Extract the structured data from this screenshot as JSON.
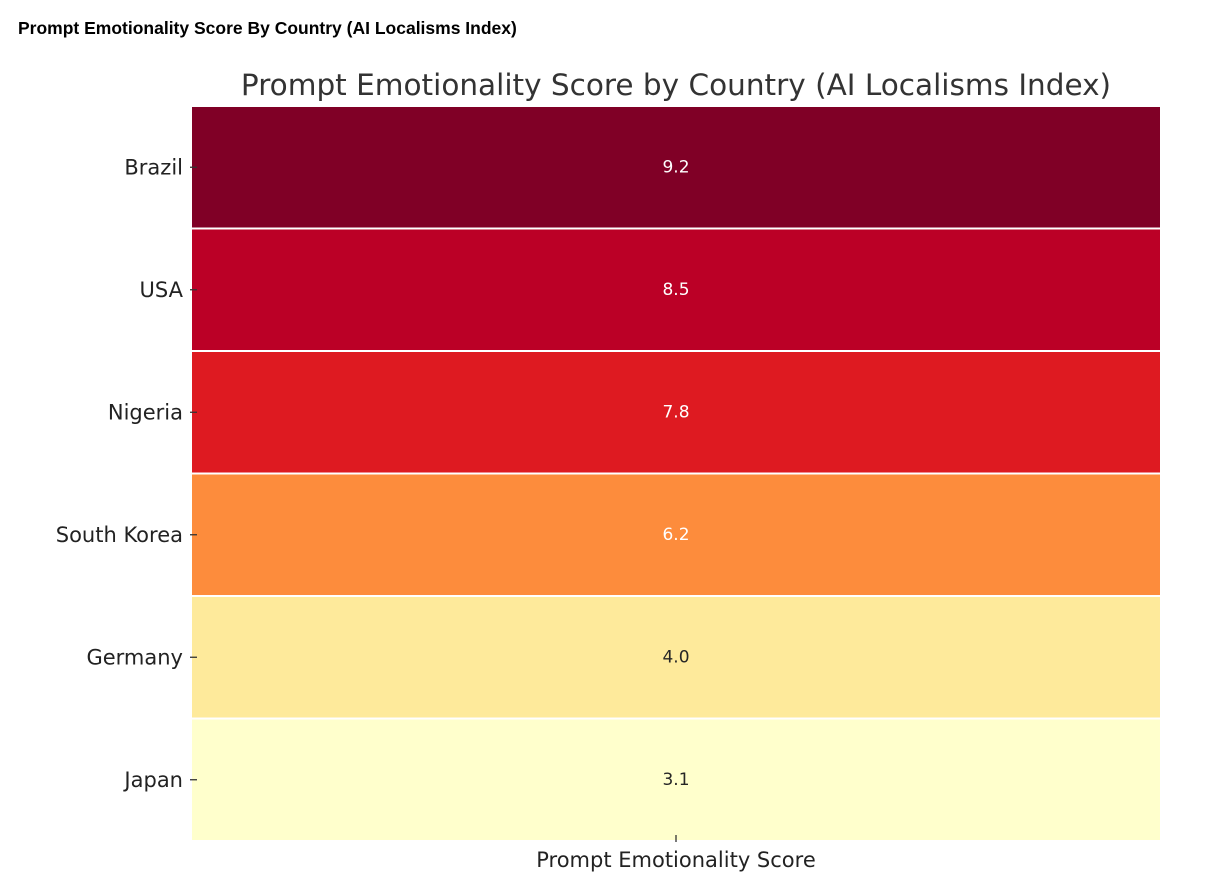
{
  "page": {
    "heading": "Prompt Emotionality Score By Country (AI Localisms Index)"
  },
  "chart_data": {
    "type": "heatmap",
    "title": "Prompt Emotionality Score by Country (AI Localisms Index)",
    "xlabel": "Prompt Emotionality Score",
    "ylabel": "",
    "columns": [
      "Prompt Emotionality Score"
    ],
    "rows": [
      "Brazil",
      "USA",
      "Nigeria",
      "South Korea",
      "Germany",
      "Japan"
    ],
    "values": [
      9.2,
      8.5,
      7.8,
      6.2,
      4.0,
      3.1
    ],
    "value_labels": [
      "9.2",
      "8.5",
      "7.8",
      "6.2",
      "4.0",
      "3.1"
    ],
    "colormap": "YlOrRd",
    "cell_colors": [
      "#800026",
      "#bb0026",
      "#de1a21",
      "#fd8c3c",
      "#feea9b",
      "#ffffcc"
    ],
    "label_colors": [
      "#ffffff",
      "#ffffff",
      "#ffffff",
      "#ffffff",
      "#262626",
      "#262626"
    ],
    "colorbar": false,
    "x_tick_labels_visible": false
  }
}
